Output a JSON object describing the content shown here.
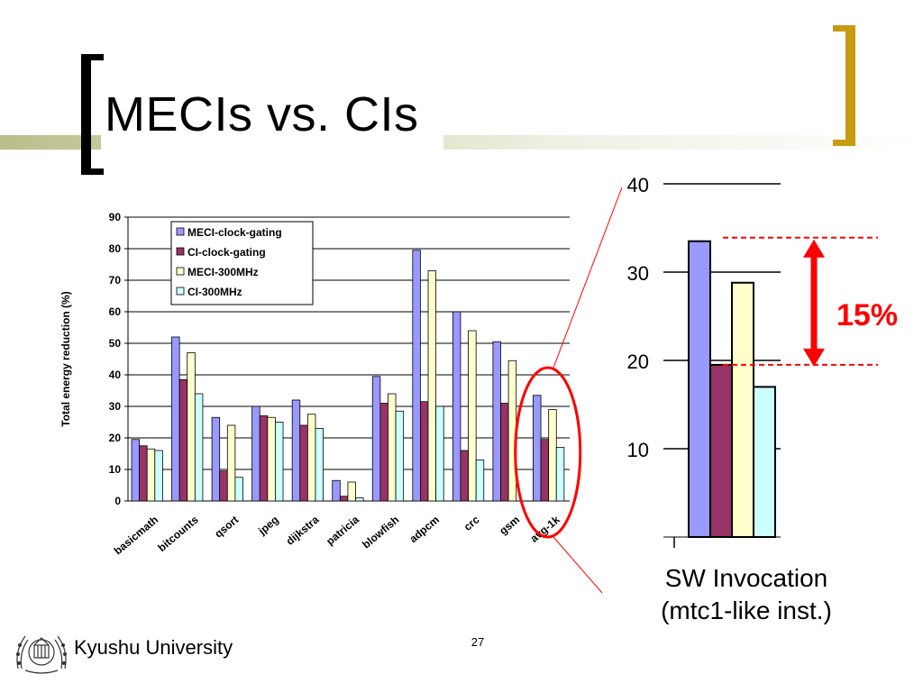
{
  "slide": {
    "title": "MECIs vs. CIs",
    "page_number": "27",
    "footer_org": "Kyushu University",
    "logo_icon": "university-seal-icon"
  },
  "colors": {
    "meci_clock_gating": "#9999ff",
    "ci_clock_gating": "#993366",
    "meci_300mhz": "#ffffcc",
    "ci_300mhz": "#ccffff",
    "highlight": "#ff0000",
    "right_bracket": "#c89a12"
  },
  "chart_data": [
    {
      "type": "bar",
      "ylabel": "Total energy reduction (%)",
      "ylim": [
        0,
        90
      ],
      "yticks": [
        0,
        10,
        20,
        30,
        40,
        50,
        60,
        70,
        80,
        90
      ],
      "grid": true,
      "legend_position": "top-left",
      "categories": [
        "basicmath",
        "bitcounts",
        "qsort",
        "jpeg",
        "dijkstra",
        "patricia",
        "blowfish",
        "adpcm",
        "crc",
        "gsm",
        "avg-1k"
      ],
      "series": [
        {
          "name": "MECI-clock-gating",
          "values": [
            19.5,
            52,
            26.5,
            30,
            32,
            6.5,
            39.5,
            79.5,
            60,
            50.5,
            33.5
          ]
        },
        {
          "name": "CI-clock-gating",
          "values": [
            17.5,
            38.5,
            9.5,
            27,
            24,
            1.5,
            31,
            31.5,
            16,
            31,
            19.5
          ]
        },
        {
          "name": "MECI-300MHz",
          "values": [
            16.5,
            47,
            24,
            26.5,
            27.5,
            6,
            34,
            73,
            54,
            44.5,
            29
          ]
        },
        {
          "name": "CI-300MHz",
          "values": [
            16,
            34,
            7.5,
            25,
            23,
            1,
            28.5,
            30,
            13,
            0,
            17
          ]
        }
      ]
    },
    {
      "type": "bar",
      "xlabel": "SW Invocation\n(mtc1-like inst.)",
      "xlabel_lines": [
        "SW Invocation",
        "(mtc1-like inst.)"
      ],
      "ylim": [
        0,
        40
      ],
      "yticks": [
        10,
        20,
        30,
        40
      ],
      "grid": true,
      "categories": [
        "SW Invocation"
      ],
      "series": [
        {
          "name": "MECI-clock-gating",
          "values": [
            33.5
          ]
        },
        {
          "name": "CI-clock-gating",
          "values": [
            19.5
          ]
        },
        {
          "name": "MECI-300MHz",
          "values": [
            28.8
          ]
        },
        {
          "name": "CI-300MHz",
          "values": [
            17
          ]
        }
      ],
      "annotation": {
        "text": "15%",
        "from": 19.5,
        "to": 33.5
      }
    }
  ]
}
